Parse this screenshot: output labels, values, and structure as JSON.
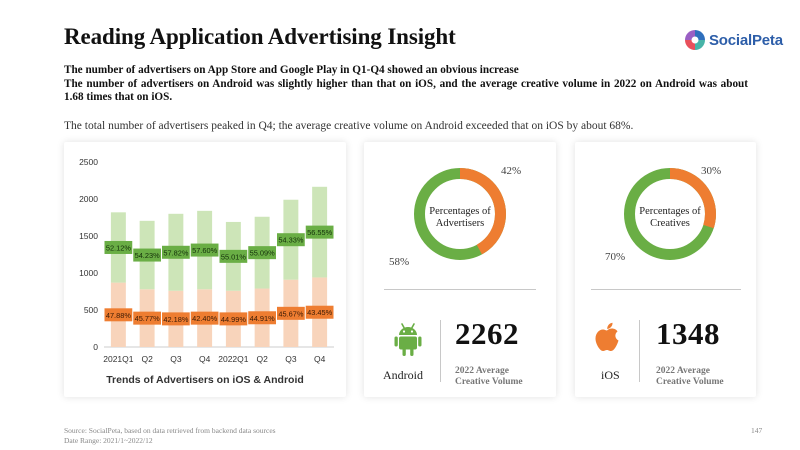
{
  "title": "Reading Application Advertising Insight",
  "logo": {
    "text": "SocialPeta"
  },
  "subtitle": {
    "line1": "The number of advertisers on App Store and Google Play in Q1-Q4 showed an obvious increase",
    "line2": "The number of advertisers on Android was slightly higher than that on iOS, and the average creative volume in 2022 on Android was about 1.68 times that on iOS."
  },
  "summary": "The total number of advertisers peaked in Q4; the average creative volume on Android exceeded that on iOS by about 68%.",
  "colors": {
    "android": "#6aae45",
    "android_light": "#cde5b8",
    "ios": "#ee7d31",
    "ios_light": "#f8d4bb"
  },
  "chart_data": [
    {
      "type": "bar",
      "stacked": true,
      "title": "Trends of Advertisers on iOS & Android",
      "categories": [
        "2021Q1",
        "Q2",
        "Q3",
        "Q4",
        "2022Q1",
        "Q2",
        "Q3",
        "Q4"
      ],
      "yticks": [
        0,
        500,
        1000,
        1500,
        2000,
        2500
      ],
      "ylim": [
        0,
        2500
      ],
      "series": [
        {
          "values": [
            870,
            780,
            760,
            780,
            760,
            790,
            910,
            940
          ],
          "labels": [
            "47.88%",
            "45.77%",
            "42.18%",
            "42.40%",
            "44.99%",
            "44.91%",
            "45.67%",
            "43.45%"
          ]
        },
        {
          "values": [
            950,
            925,
            1040,
            1060,
            930,
            970,
            1080,
            1225
          ],
          "labels": [
            "52.12%",
            "54.23%",
            "57.82%",
            "57.60%",
            "55.01%",
            "55.09%",
            "54.33%",
            "56.55%"
          ]
        }
      ]
    },
    {
      "type": "pie",
      "title": "Percentages of Advertisers",
      "values": [
        42,
        58
      ],
      "labels": [
        "42%",
        "58%"
      ]
    },
    {
      "type": "pie",
      "title": "Percentages of Creatives",
      "values": [
        30,
        70
      ],
      "labels": [
        "30%",
        "70%"
      ]
    }
  ],
  "android": {
    "donut_title_line1": "Percentages of",
    "donut_title_line2": "Advertisers",
    "orange_pct": "42%",
    "green_pct": "58%",
    "platform": "Android",
    "value": "2262",
    "label_line1": "2022 Average",
    "label_line2": "Creative Volume",
    "icon": "android-icon"
  },
  "ios": {
    "donut_title_line1": "Percentages of",
    "donut_title_line2": "Creatives",
    "orange_pct": "30%",
    "green_pct": "70%",
    "platform": "iOS",
    "value": "1348",
    "label_line1": "2022 Average",
    "label_line2": "Creative Volume",
    "icon": "apple-icon"
  },
  "footer": {
    "source": "Source: SocialPeta, based on data retrieved from backend data sources",
    "date_range": "Date Range:  2021/1~2022/12"
  },
  "page_number": "147"
}
